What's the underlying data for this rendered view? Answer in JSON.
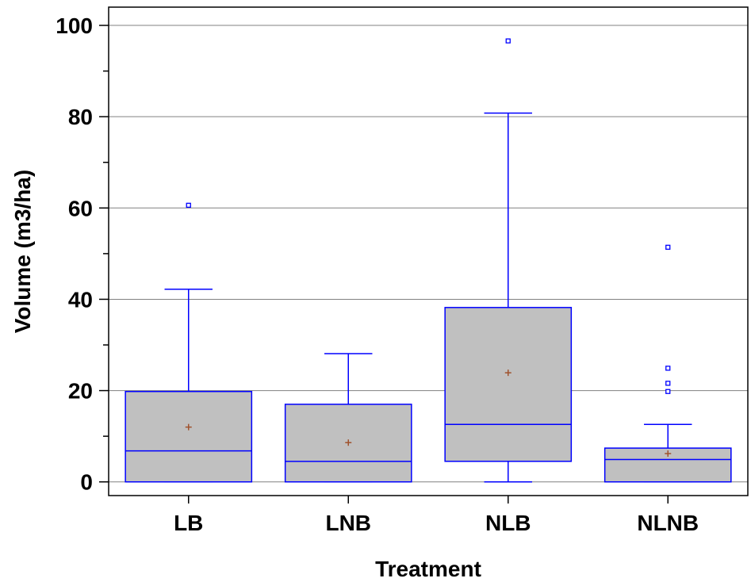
{
  "chart_data": {
    "type": "box",
    "title": "",
    "xlabel": "Treatment",
    "ylabel": "Volume (m3/ha)",
    "ylim": [
      -3,
      104
    ],
    "yticks": [
      0,
      20,
      40,
      60,
      80,
      100
    ],
    "y_minor_step": 10,
    "grid": "horizontal",
    "legend": "none",
    "categories": [
      "LB",
      "LNB",
      "NLB",
      "NLNB"
    ],
    "boxes": [
      {
        "category": "LB",
        "min": 0,
        "q1": 0,
        "median": 6.8,
        "q3": 19.8,
        "max": 42.2,
        "mean": 12.0,
        "outliers": [
          60.6
        ]
      },
      {
        "category": "LNB",
        "min": 0,
        "q1": 0,
        "median": 4.5,
        "q3": 17.0,
        "max": 28.1,
        "mean": 8.6,
        "outliers": []
      },
      {
        "category": "NLB",
        "min": 0,
        "q1": 4.5,
        "median": 12.6,
        "q3": 38.2,
        "max": 80.8,
        "mean": 23.9,
        "outliers": [
          96.6
        ]
      },
      {
        "category": "NLNB",
        "min": 0,
        "q1": 0,
        "median": 4.9,
        "q3": 7.4,
        "max": 12.6,
        "mean": 6.2,
        "outliers": [
          19.8,
          21.6,
          24.9,
          51.4
        ]
      }
    ],
    "colors": {
      "box_fill": "#c0c0c0",
      "box_stroke": "#0000ff",
      "mean_marker": "#a0522d",
      "outlier": "#0000ff",
      "grid": "#808080",
      "axis": "#000000"
    }
  }
}
